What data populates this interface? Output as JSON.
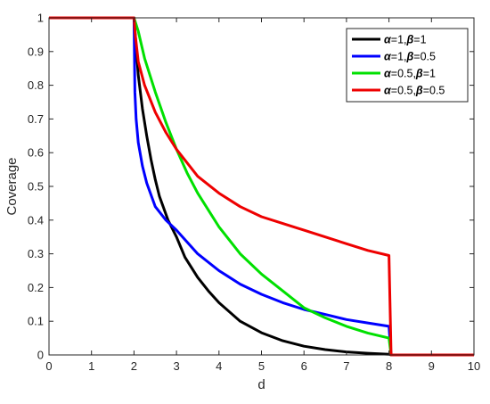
{
  "chart_data": {
    "type": "line",
    "title": "",
    "xlabel": "d",
    "ylabel": "Coverage",
    "xlim": [
      0,
      10
    ],
    "ylim": [
      0,
      1
    ],
    "xticks": [
      "0",
      "1",
      "2",
      "3",
      "4",
      "5",
      "6",
      "7",
      "8",
      "9",
      "10"
    ],
    "yticks": [
      "0",
      "0.1",
      "0.2",
      "0.3",
      "0.4",
      "0.5",
      "0.6",
      "0.7",
      "0.8",
      "0.9",
      "1"
    ],
    "grid": false,
    "legend": "top-right",
    "series": [
      {
        "name": "α=1,β=1",
        "greek_a": "α",
        "val_a": "=1,",
        "greek_b": "β",
        "val_b": "=1",
        "color": "#000000",
        "x": [
          0,
          2,
          2.1,
          2.2,
          2.3,
          2.4,
          2.5,
          2.6,
          2.8,
          3,
          3.2,
          3.5,
          3.75,
          4,
          4.5,
          5,
          5.5,
          6,
          6.5,
          7,
          7.5,
          8,
          8.05,
          8.1,
          10
        ],
        "y": [
          1,
          1,
          0.83,
          0.73,
          0.65,
          0.58,
          0.52,
          0.47,
          0.4,
          0.35,
          0.29,
          0.23,
          0.19,
          0.155,
          0.1,
          0.066,
          0.042,
          0.026,
          0.016,
          0.009,
          0.005,
          0.002,
          0,
          0,
          0
        ]
      },
      {
        "name": "α=1,β=0.5",
        "greek_a": "α",
        "val_a": "=1,",
        "greek_b": "β",
        "val_b": "=0.5",
        "color": "#0000ff",
        "x": [
          0,
          2,
          2.02,
          2.05,
          2.1,
          2.2,
          2.3,
          2.5,
          2.75,
          3,
          3.5,
          4,
          4.5,
          5,
          5.5,
          6,
          6.5,
          7,
          7.5,
          8,
          8.05,
          8.1,
          10
        ],
        "y": [
          1,
          1,
          0.78,
          0.7,
          0.63,
          0.56,
          0.51,
          0.44,
          0.4,
          0.37,
          0.3,
          0.25,
          0.21,
          0.18,
          0.155,
          0.135,
          0.12,
          0.105,
          0.095,
          0.085,
          0,
          0,
          0
        ]
      },
      {
        "name": "α=0.5,β=1",
        "greek_a": "α",
        "val_a": "=0.5,",
        "greek_b": "β",
        "val_b": "=1",
        "color": "#00e000",
        "x": [
          0,
          2,
          2.1,
          2.25,
          2.5,
          2.75,
          3,
          3.25,
          3.5,
          4,
          4.5,
          5,
          5.5,
          6,
          6.5,
          7,
          7.5,
          8,
          8.05,
          8.1,
          10
        ],
        "y": [
          1,
          1,
          0.96,
          0.88,
          0.78,
          0.69,
          0.61,
          0.54,
          0.48,
          0.38,
          0.3,
          0.24,
          0.19,
          0.14,
          0.11,
          0.085,
          0.065,
          0.05,
          0,
          0,
          0
        ]
      },
      {
        "name": "α=0.5,β=0.5",
        "greek_a": "α",
        "val_a": "=0.5,",
        "greek_b": "β",
        "val_b": "=0.5",
        "color": "#ee0000",
        "x": [
          0,
          2,
          2.03,
          2.1,
          2.25,
          2.5,
          2.75,
          3,
          3.5,
          4,
          4.5,
          5,
          5.5,
          6,
          6.5,
          7,
          7.5,
          8,
          8.05,
          8.1,
          10
        ],
        "y": [
          1,
          1,
          0.95,
          0.87,
          0.8,
          0.72,
          0.66,
          0.61,
          0.53,
          0.48,
          0.44,
          0.41,
          0.39,
          0.37,
          0.35,
          0.33,
          0.31,
          0.295,
          0,
          0,
          0
        ]
      }
    ]
  }
}
